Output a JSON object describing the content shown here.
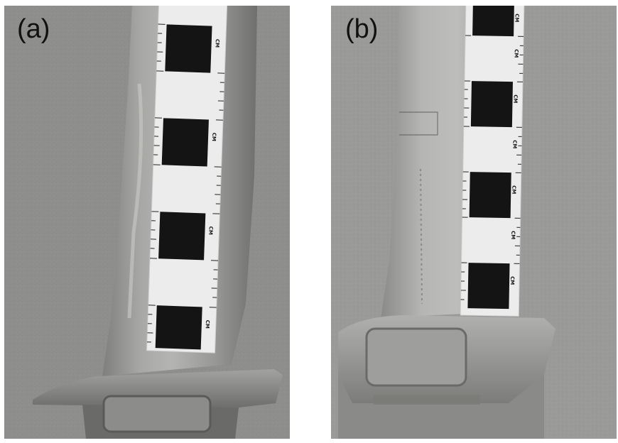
{
  "figure": {
    "panels": [
      {
        "label": "(a)",
        "scale_unit": "CM",
        "blade_marking": ""
      },
      {
        "label": "(b)",
        "scale_unit": "CM",
        "blade_marking": "",
        "base_marking": ""
      }
    ]
  },
  "colors": {
    "background": "#8d8d8b",
    "blade": "#9a9a98",
    "scale_black": "#141414",
    "scale_white": "#ececec"
  }
}
